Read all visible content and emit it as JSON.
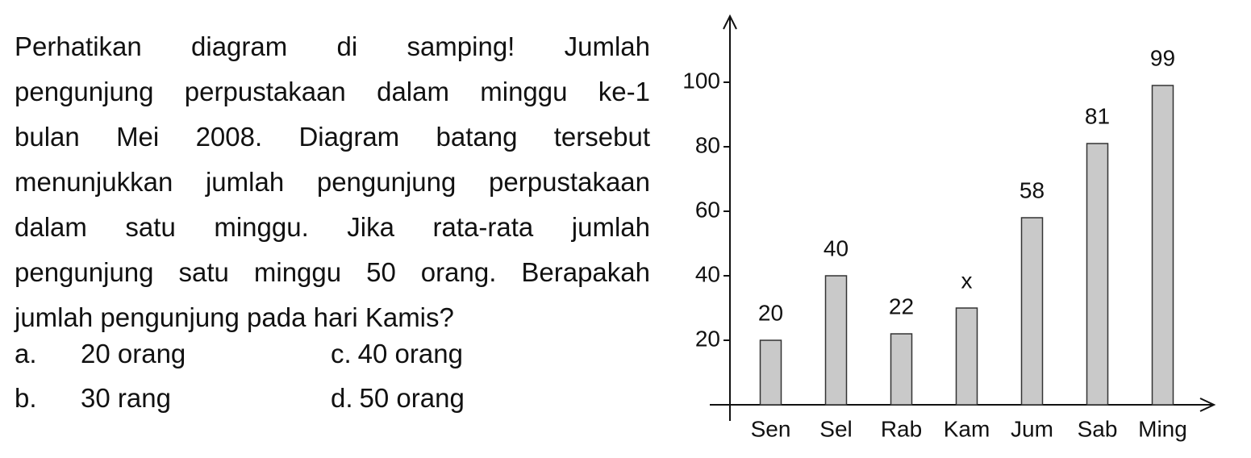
{
  "question_lines": [
    "Perhatikan diagram di samping! Jumlah",
    "pengunjung perpustakaan dalam minggu ke-1",
    "bulan Mei 2008. Diagram batang tersebut",
    "menunjukkan jumlah pengunjung perpustakaan",
    "dalam satu minggu. Jika rata-rata jumlah",
    "pengunjung satu minggu 50 orang. Berapakah",
    "jumlah pengunjung pada hari Kamis?"
  ],
  "options": [
    {
      "letter": "a.",
      "text": "20 orang"
    },
    {
      "letter": "b.",
      "text": "30 rang"
    },
    {
      "letter": "c.",
      "text": "40 orang"
    },
    {
      "letter": "d.",
      "text": "50 orang"
    }
  ],
  "chart_data": {
    "type": "bar",
    "categories": [
      "Sen",
      "Sel",
      "Rab",
      "Kam",
      "Jum",
      "Sab",
      "Ming"
    ],
    "values": [
      20,
      40,
      22,
      30,
      58,
      81,
      99
    ],
    "value_labels": [
      "20",
      "40",
      "22",
      "x",
      "58",
      "81",
      "99"
    ],
    "color": "#c9c9c9",
    "ylim": [
      0,
      120
    ],
    "yticks": [
      20,
      40,
      60,
      80,
      100
    ]
  }
}
